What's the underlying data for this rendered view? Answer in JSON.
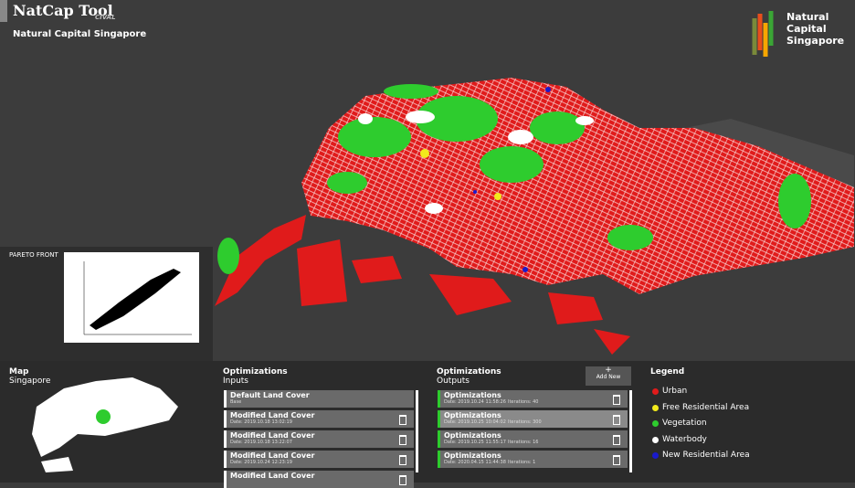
{
  "header": {
    "title": "NatCap Tool",
    "credit": "CIVAL",
    "subtitle": "Natural Capital Singapore"
  },
  "logo": {
    "lines": [
      "Natural",
      "Capital",
      "Singapore"
    ]
  },
  "pareto": {
    "title": "PARETO FRONT"
  },
  "minimap": {
    "title": "Map",
    "subtitle": "Singapore"
  },
  "inputs": {
    "title": "Optimizations",
    "subtitle": "Inputs",
    "items": [
      {
        "name": "Default Land Cover",
        "date": "Base"
      },
      {
        "name": "Modified Land Cover",
        "date": "Date: 2019.10.18 13:02:19"
      },
      {
        "name": "Modified Land Cover",
        "date": "Date: 2019.10.18 13:22:07"
      },
      {
        "name": "Modified Land Cover",
        "date": "Date: 2019.10.24 12:23:19"
      },
      {
        "name": "Modified Land Cover",
        "date": ""
      }
    ]
  },
  "outputs": {
    "title": "Optimizations",
    "subtitle": "Outputs",
    "add_icon": "+",
    "add_label": "Add New",
    "items": [
      {
        "name": "Optimizations",
        "date": "Date: 2019.10.24 11:58:26",
        "iterations": "Iterations: 40"
      },
      {
        "name": "Optimizations",
        "date": "Date: 2019.10.25 10:04:02",
        "iterations": "Iterations: 300"
      },
      {
        "name": "Optimizations",
        "date": "Date: 2019.10.25 11:55:17",
        "iterations": "Iterations: 16"
      },
      {
        "name": "Optimizations",
        "date": "Date: 2020.04.15 11:44:38",
        "iterations": "Iterations: 1"
      }
    ]
  },
  "legend": {
    "title": "Legend",
    "items": [
      {
        "label": "Urban",
        "color": "#e01b1b"
      },
      {
        "label": "Free Residential Area",
        "color": "#f2ea1c"
      },
      {
        "label": "Vegetation",
        "color": "#2ecc2e"
      },
      {
        "label": "Waterbody",
        "color": "#ffffff"
      },
      {
        "label": "New Residential Area",
        "color": "#1a1acc"
      }
    ]
  }
}
